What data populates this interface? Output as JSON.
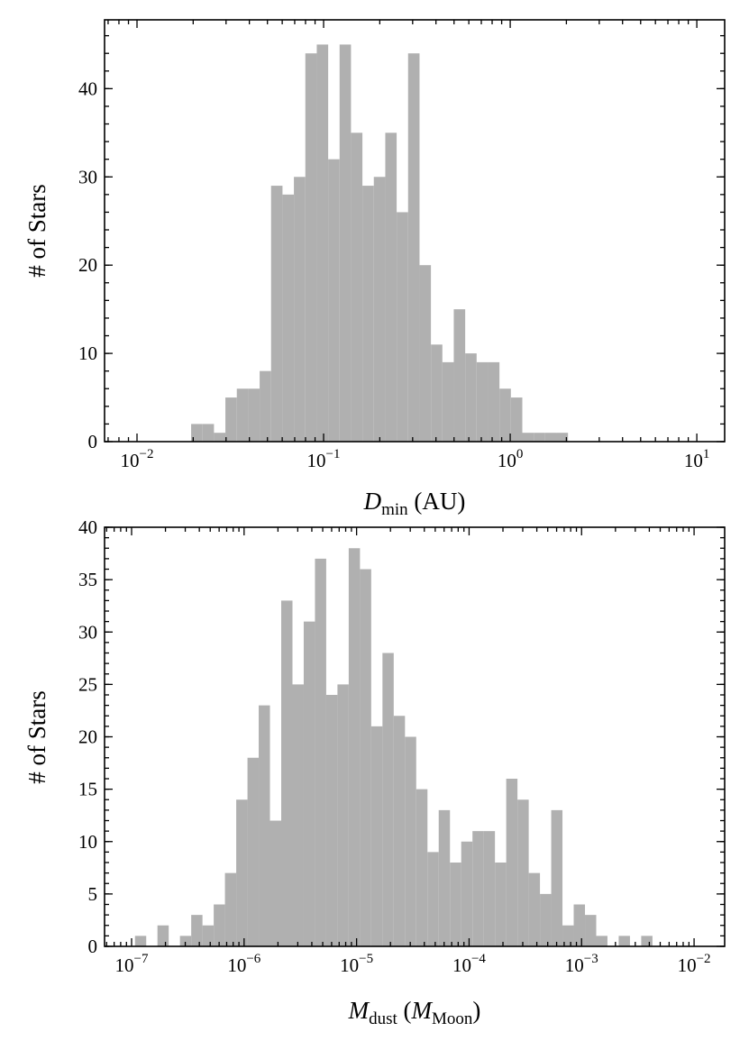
{
  "chart_data": [
    {
      "type": "histogram",
      "log_x": true,
      "color": "#b0b0b0",
      "bins": [
        0.0195,
        0.02245,
        0.02585,
        0.02976,
        0.03426,
        0.03945,
        0.04542,
        0.05229,
        0.0602,
        0.06931,
        0.0798,
        0.0919,
        0.1058,
        0.1218,
        0.1402,
        0.1614,
        0.1858,
        0.214,
        0.2463,
        0.2836,
        0.3266,
        0.376,
        0.4329,
        0.4984,
        0.5738,
        0.6607,
        0.7606,
        0.8757,
        1.008,
        1.161,
        1.337,
        1.539,
        1.772,
        2.04
      ],
      "values": [
        2,
        2,
        1,
        5,
        6,
        6,
        8,
        29,
        28,
        30,
        44,
        45,
        32,
        45,
        35,
        29,
        30,
        35,
        26,
        44,
        20,
        11,
        9,
        15,
        10,
        9,
        9,
        6,
        5,
        1,
        1,
        1,
        1
      ],
      "xlim": [
        0.0067,
        14.1
      ],
      "ylim": [
        0,
        47.8
      ],
      "xticks": [
        {
          "value": 0.01,
          "label": "10−2"
        },
        {
          "value": 0.1,
          "label": "10−1"
        },
        {
          "value": 1,
          "label": "100"
        },
        {
          "value": 10,
          "label": "101"
        }
      ],
      "yticks": [
        0,
        10,
        20,
        30,
        40
      ],
      "xlabel": [
        "D",
        "min",
        " (AU)"
      ],
      "ylabel": "# of Stars"
    },
    {
      "type": "histogram",
      "log_x": true,
      "color": "#b0b0b0",
      "bins": [
        1.072e-07,
        1.349e-07,
        1.698e-07,
        2.138e-07,
        2.692e-07,
        3.388e-07,
        4.266e-07,
        5.37e-07,
        6.761e-07,
        8.511e-07,
        1.072e-06,
        1.349e-06,
        1.698e-06,
        2.138e-06,
        2.692e-06,
        3.388e-06,
        4.266e-06,
        5.37e-06,
        6.761e-06,
        8.511e-06,
        1.072e-05,
        1.349e-05,
        1.698e-05,
        2.138e-05,
        2.692e-05,
        3.388e-05,
        4.266e-05,
        5.37e-05,
        6.761e-05,
        8.511e-05,
        0.0001072,
        0.0001349,
        0.0001698,
        0.0002138,
        0.0002692,
        0.0003388,
        0.0004266,
        0.000537,
        0.0006761,
        0.0008511,
        0.001072,
        0.001349,
        0.001698,
        0.002138,
        0.002692,
        0.003388,
        0.004266
      ],
      "values": [
        1,
        0,
        2,
        0,
        1,
        3,
        2,
        4,
        7,
        14,
        18,
        23,
        12,
        33,
        25,
        31,
        37,
        24,
        25,
        38,
        36,
        21,
        28,
        22,
        20,
        15,
        9,
        13,
        8,
        10,
        11,
        11,
        8,
        16,
        14,
        7,
        5,
        13,
        2,
        4,
        3,
        1,
        0,
        1,
        0,
        1
      ],
      "xlim": [
        5.75e-08,
        0.0187
      ],
      "ylim": [
        0,
        40
      ],
      "xticks": [
        {
          "value": 1e-07,
          "label": "10−7"
        },
        {
          "value": 1e-06,
          "label": "10−6"
        },
        {
          "value": 1e-05,
          "label": "10−5"
        },
        {
          "value": 0.0001,
          "label": "10−4"
        },
        {
          "value": 0.001,
          "label": "10−3"
        },
        {
          "value": 0.01,
          "label": "10−2"
        }
      ],
      "yticks": [
        0,
        5,
        10,
        15,
        20,
        25,
        30,
        35,
        40
      ],
      "xlabel": [
        "M",
        "dust",
        " (",
        "M",
        "Moon",
        ")"
      ],
      "ylabel": "# of Stars"
    }
  ]
}
